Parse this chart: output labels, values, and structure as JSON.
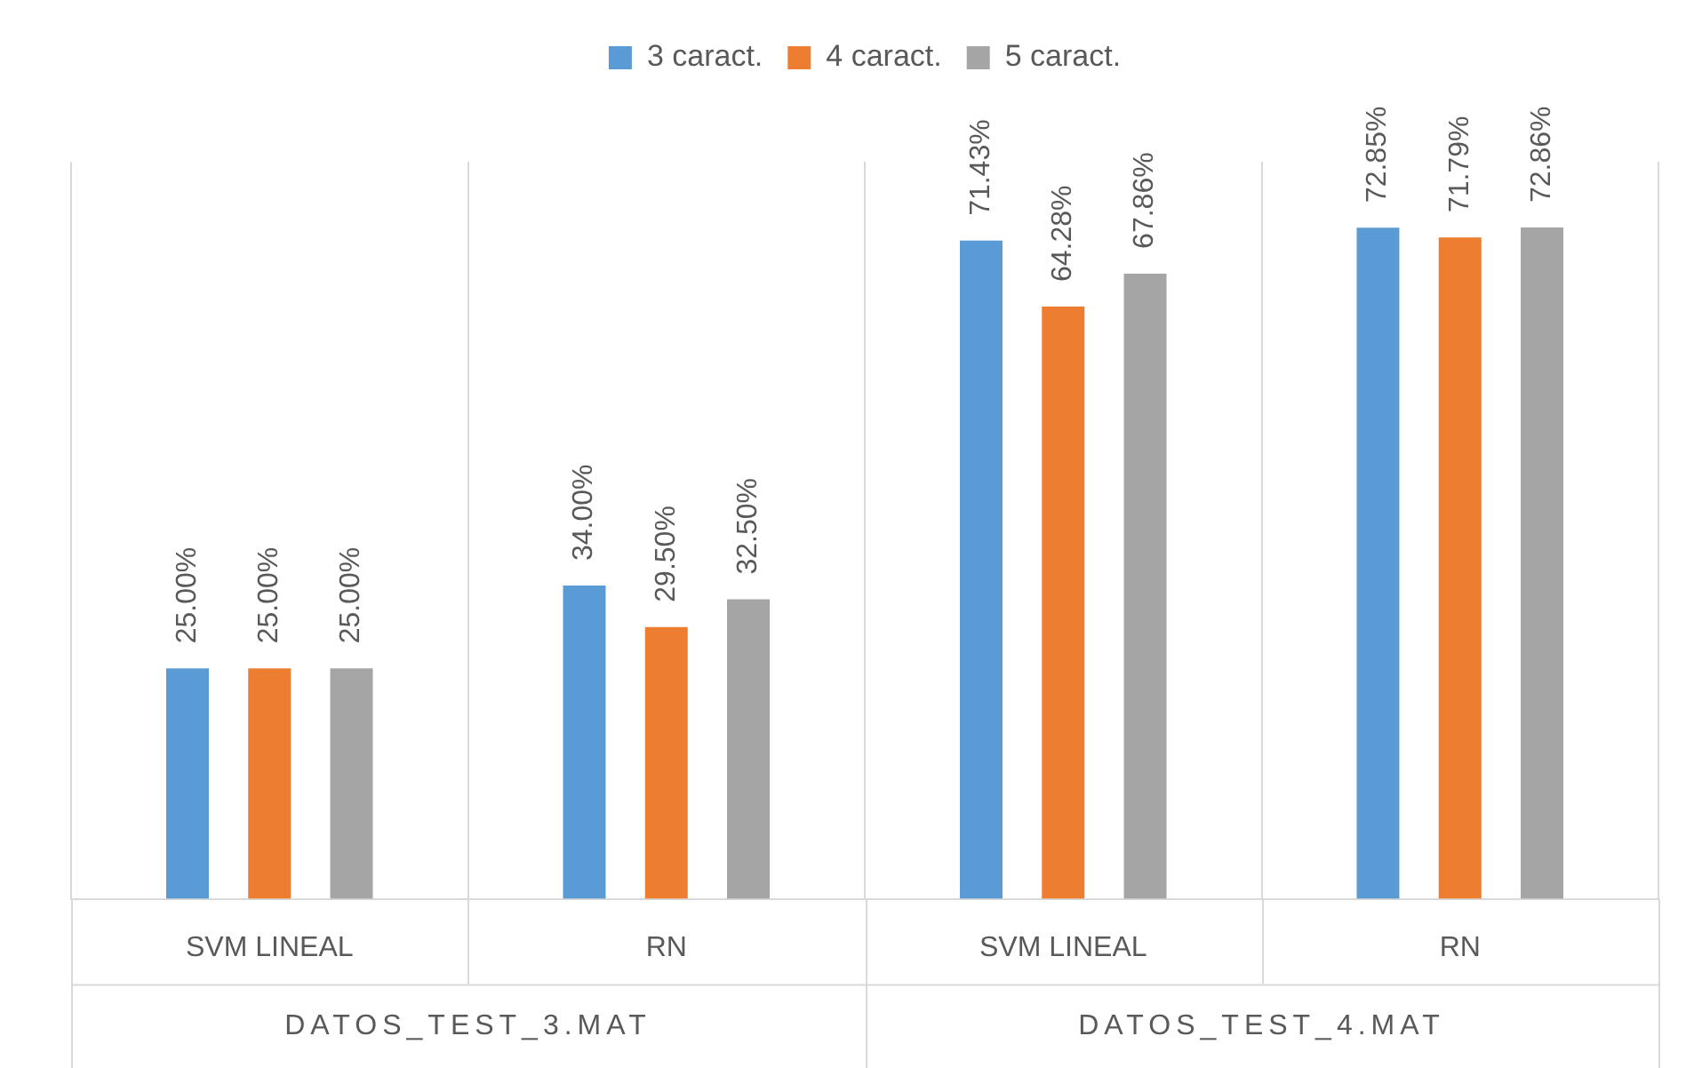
{
  "chart_data": {
    "type": "bar",
    "categories": [
      "SVM LINEAL",
      "RN",
      "SVM LINEAL",
      "RN"
    ],
    "series": [
      {
        "name": "3 caract.",
        "color": "#5b9bd5",
        "values": [
          25.0,
          34.0,
          71.43,
          72.85
        ],
        "value_labels": [
          "25.00%",
          "34.00%",
          "71.43%",
          "72.85%"
        ]
      },
      {
        "name": "4 caract.",
        "color": "#ed7d31",
        "values": [
          25.0,
          29.5,
          64.28,
          71.79
        ],
        "value_labels": [
          "25.00%",
          "29.50%",
          "64.28%",
          "71.79%"
        ]
      },
      {
        "name": "5 caract.",
        "color": "#a5a5a5",
        "values": [
          25.0,
          32.5,
          67.86,
          72.86
        ],
        "value_labels": [
          "25.00%",
          "32.50%",
          "67.86%",
          "72.86%"
        ]
      }
    ],
    "annotations": [
      "DATOS_TEST_3.MAT",
      "DATOS_TEST_4.MAT"
    ],
    "ylim": [
      0,
      80
    ],
    "tick_labels": "x",
    "grid": "x",
    "legend": "top"
  }
}
